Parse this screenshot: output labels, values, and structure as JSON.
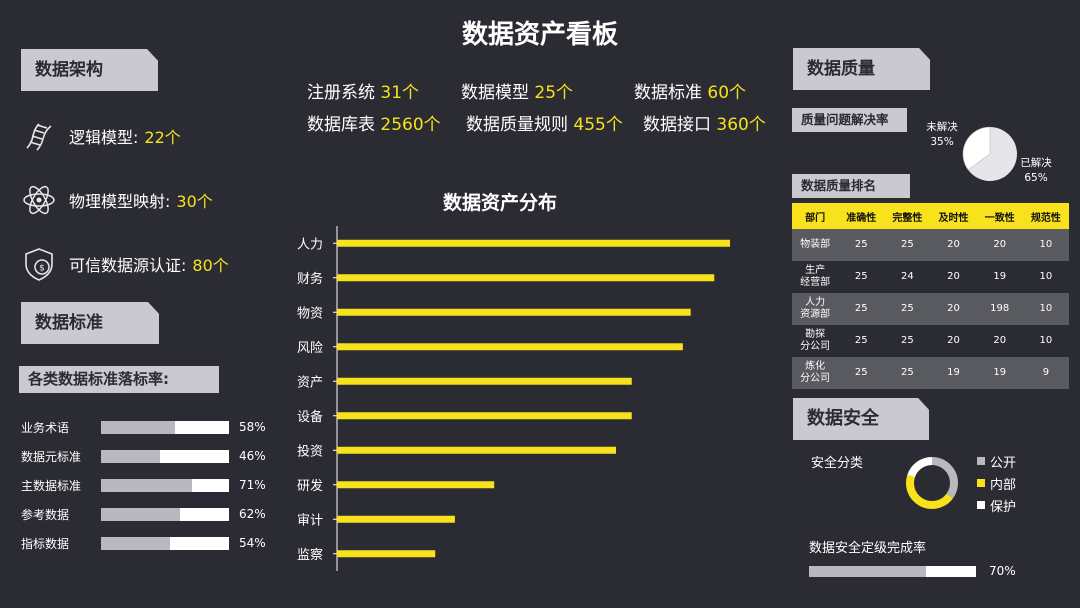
{
  "title": "数据资产看板",
  "architecture": {
    "heading": "数据架构",
    "items": [
      {
        "label": "逻辑模型:",
        "value": "22个",
        "icon": "dna-icon"
      },
      {
        "label": "物理模型映射:",
        "value": "30个",
        "icon": "atom-icon"
      },
      {
        "label": "可信数据源认证:",
        "value": "80个",
        "icon": "shield-coin-icon"
      }
    ]
  },
  "stats": [
    {
      "label": "注册系统",
      "value": "31",
      "unit": "个"
    },
    {
      "label": "数据模型",
      "value": "25",
      "unit": "个"
    },
    {
      "label": "数据标准",
      "value": "60",
      "unit": "个"
    },
    {
      "label": "数据库表",
      "value": "2560",
      "unit": "个"
    },
    {
      "label": "数据质量规则",
      "value": "455",
      "unit": "个"
    },
    {
      "label": "数据接口",
      "value": "360",
      "unit": "个"
    }
  ],
  "standards": {
    "heading": "数据标准",
    "subheading": "各类数据标准落标率:",
    "items": [
      {
        "label": "业务术语",
        "value": "58%",
        "fraction": 0.58
      },
      {
        "label": "数据元标准",
        "value": "46%",
        "fraction": 0.46
      },
      {
        "label": "主数据标准",
        "value": "71%",
        "fraction": 0.71
      },
      {
        "label": "参考数据",
        "value": "62%",
        "fraction": 0.62
      },
      {
        "label": "指标数据",
        "value": "54%",
        "fraction": 0.54
      }
    ]
  },
  "chart_data": {
    "type": "bar",
    "title": "数据资产分布",
    "orientation": "horizontal",
    "categories": [
      "人力",
      "财务",
      "物资",
      "风险",
      "资产",
      "设备",
      "投资",
      "研发",
      "审计",
      "监察"
    ],
    "values": [
      100,
      96,
      90,
      88,
      75,
      75,
      71,
      40,
      30,
      25
    ],
    "xlim": [
      0,
      100
    ],
    "bar_color": "#f7e21c"
  },
  "quality": {
    "heading": "数据质量",
    "resolution_heading": "质量问题解决率",
    "pie": {
      "unresolved": {
        "label": "未解决",
        "value": "35%",
        "fraction": 0.35
      },
      "resolved": {
        "label": "已解决",
        "value": "65%",
        "fraction": 0.65
      }
    },
    "rank_heading": "数据质量排名",
    "table": {
      "headers": [
        "部门",
        "准确性",
        "完整性",
        "及时性",
        "一致性",
        "规范性"
      ],
      "rows": [
        [
          "物装部",
          "25",
          "25",
          "20",
          "20",
          "10"
        ],
        [
          "生产\n经营部",
          "25",
          "24",
          "20",
          "19",
          "10"
        ],
        [
          "人力\n资源部",
          "25",
          "25",
          "20",
          "198",
          "10"
        ],
        [
          "勘探\n分公司",
          "25",
          "25",
          "20",
          "20",
          "10"
        ],
        [
          "炼化\n分公司",
          "25",
          "25",
          "19",
          "19",
          "9"
        ]
      ]
    }
  },
  "security": {
    "heading": "数据安全",
    "classification_label": "安全分类",
    "legend": [
      {
        "label": "公开",
        "color": "#b8b8be",
        "fraction": 0.35
      },
      {
        "label": "内部",
        "color": "#f7e21c",
        "fraction": 0.45
      },
      {
        "label": "保护",
        "color": "#ffffff",
        "fraction": 0.2
      }
    ],
    "grading_label": "数据安全定级完成率",
    "grading_value": "70%",
    "grading_fraction": 0.7
  },
  "colors": {
    "background": "#2b2b33",
    "accent": "#f7e21c",
    "panel": "#c9c9cf"
  }
}
